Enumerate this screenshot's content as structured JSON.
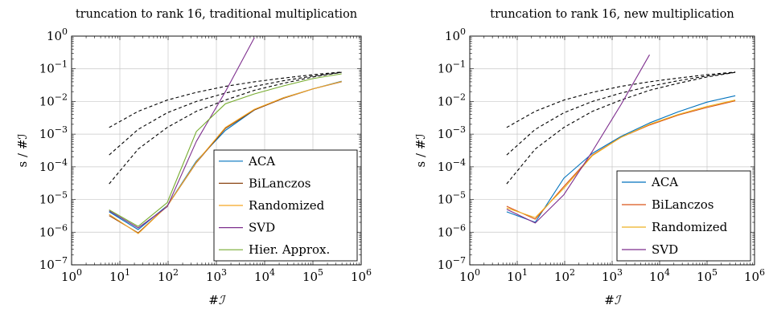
{
  "chart_data": [
    {
      "type": "line",
      "title": "truncation to rank 16, traditional multiplication",
      "xlabel": "#ℐ",
      "ylabel": "s / #ℐ",
      "xscale": "log",
      "yscale": "log",
      "xlim": [
        1,
        1000000
      ],
      "ylim": [
        1e-07,
        1
      ],
      "grid": true,
      "legend": "bottom-right",
      "x_tick_labels": [
        {
          "b": "10",
          "e": "0"
        },
        {
          "b": "10",
          "e": "1"
        },
        {
          "b": "10",
          "e": "2"
        },
        {
          "b": "10",
          "e": "3"
        },
        {
          "b": "10",
          "e": "4"
        },
        {
          "b": "10",
          "e": "5"
        },
        {
          "b": "10",
          "e": "6"
        }
      ],
      "y_tick_labels": [
        {
          "b": "10",
          "e": "−7"
        },
        {
          "b": "10",
          "e": "−6"
        },
        {
          "b": "10",
          "e": "−5"
        },
        {
          "b": "10",
          "e": "−4"
        },
        {
          "b": "10",
          "e": "−3"
        },
        {
          "b": "10",
          "e": "−2"
        },
        {
          "b": "10",
          "e": "−1"
        },
        {
          "b": "10",
          "e": "0"
        }
      ],
      "series": [
        {
          "name": "ACA",
          "color": "#0072bd",
          "x": [
            6,
            24,
            96,
            384,
            1536,
            6144,
            24576,
            98304,
            393216
          ],
          "y": [
            4.2e-06,
            1.2e-06,
            6.5e-06,
            0.00015,
            0.0013,
            0.0055,
            0.013,
            0.024,
            0.042
          ]
        },
        {
          "name": "BiLanczos",
          "color": "#8b4513",
          "x": [
            6,
            24,
            96,
            384,
            1536,
            6144,
            24576,
            98304,
            393216
          ],
          "y": [
            3.2e-06,
            9.5e-07,
            6.3e-06,
            0.000135,
            0.0015,
            0.0055,
            0.0125,
            0.024,
            0.04
          ]
        },
        {
          "name": "Randomized",
          "color": "#f5a623",
          "x": [
            6,
            24,
            96,
            384,
            1536,
            6144,
            24576,
            98304,
            393216
          ],
          "y": [
            3.5e-06,
            9e-07,
            6.4e-06,
            0.00014,
            0.0016,
            0.0058,
            0.013,
            0.024,
            0.041
          ]
        },
        {
          "name": "SVD",
          "color": "#7e2f8e",
          "x": [
            6,
            24,
            96,
            384,
            1536,
            6144
          ],
          "y": [
            4.5e-06,
            1.35e-06,
            6e-06,
            0.0006,
            0.02,
            0.9
          ]
        },
        {
          "name": "Hier. Approx.",
          "color": "#77ac30",
          "x": [
            6,
            24,
            96,
            384,
            1536,
            6144,
            24576,
            98304,
            393216
          ],
          "y": [
            4.8e-06,
            1.5e-06,
            8e-06,
            0.0012,
            0.0085,
            0.017,
            0.03,
            0.05,
            0.07
          ]
        },
        {
          "color": "#000000",
          "dashed": true,
          "x": [
            6,
            24,
            96,
            384,
            1536,
            6144,
            24576,
            98304,
            393216
          ],
          "y": [
            0.0016,
            0.005,
            0.011,
            0.019,
            0.029,
            0.04,
            0.052,
            0.066,
            0.08
          ]
        },
        {
          "color": "#000000",
          "dashed": true,
          "x": [
            6,
            24,
            96,
            384,
            1536,
            6144,
            24576,
            98304,
            393216
          ],
          "y": [
            0.00023,
            0.0014,
            0.0045,
            0.01,
            0.018,
            0.029,
            0.043,
            0.06,
            0.078
          ]
        },
        {
          "color": "#000000",
          "dashed": true,
          "x": [
            6,
            24,
            96,
            384,
            1536,
            6144,
            24576,
            98304,
            393216
          ],
          "y": [
            3e-05,
            0.00035,
            0.0016,
            0.005,
            0.011,
            0.022,
            0.036,
            0.056,
            0.078
          ]
        }
      ]
    },
    {
      "type": "line",
      "title": "truncation to rank 16, new multiplication",
      "xlabel": "#ℐ",
      "ylabel": "s / #ℐ",
      "xscale": "log",
      "yscale": "log",
      "xlim": [
        1,
        1000000
      ],
      "ylim": [
        1e-07,
        1
      ],
      "grid": true,
      "legend": "bottom-right",
      "x_tick_labels": [
        {
          "b": "10",
          "e": "0"
        },
        {
          "b": "10",
          "e": "1"
        },
        {
          "b": "10",
          "e": "2"
        },
        {
          "b": "10",
          "e": "3"
        },
        {
          "b": "10",
          "e": "4"
        },
        {
          "b": "10",
          "e": "5"
        },
        {
          "b": "10",
          "e": "6"
        }
      ],
      "y_tick_labels": [
        {
          "b": "10",
          "e": "−7"
        },
        {
          "b": "10",
          "e": "−6"
        },
        {
          "b": "10",
          "e": "−5"
        },
        {
          "b": "10",
          "e": "−4"
        },
        {
          "b": "10",
          "e": "−3"
        },
        {
          "b": "10",
          "e": "−2"
        },
        {
          "b": "10",
          "e": "−1"
        },
        {
          "b": "10",
          "e": "0"
        }
      ],
      "series": [
        {
          "name": "ACA",
          "color": "#0072bd",
          "x": [
            6,
            24,
            96,
            384,
            1536,
            6144,
            24576,
            98304,
            393216
          ],
          "y": [
            4.2e-06,
            2e-06,
            4.5e-05,
            0.00026,
            0.00085,
            0.0022,
            0.0048,
            0.0095,
            0.015
          ]
        },
        {
          "name": "BiLanczos",
          "color": "#d95319",
          "x": [
            6,
            24,
            96,
            384,
            1536,
            6144,
            24576,
            98304,
            393216
          ],
          "y": [
            6.2e-06,
            2.5e-06,
            2.5e-05,
            0.00023,
            0.0008,
            0.0019,
            0.0038,
            0.0065,
            0.0105
          ]
        },
        {
          "name": "Randomized",
          "color": "#edb120",
          "x": [
            6,
            24,
            96,
            384,
            1536,
            6144,
            24576,
            98304,
            393216
          ],
          "y": [
            5.5e-06,
            2.8e-06,
            2.2e-05,
            0.00022,
            0.0008,
            0.002,
            0.004,
            0.007,
            0.011
          ]
        },
        {
          "name": "SVD",
          "color": "#7e2f8e",
          "x": [
            6,
            24,
            96,
            384,
            1536,
            6144
          ],
          "y": [
            5e-06,
            1.9e-06,
            1.4e-05,
            0.0003,
            0.008,
            0.27
          ]
        },
        {
          "color": "#000000",
          "dashed": true,
          "x": [
            6,
            24,
            96,
            384,
            1536,
            6144,
            24576,
            98304,
            393216
          ],
          "y": [
            0.0016,
            0.005,
            0.011,
            0.019,
            0.029,
            0.04,
            0.052,
            0.066,
            0.08
          ]
        },
        {
          "color": "#000000",
          "dashed": true,
          "x": [
            6,
            24,
            96,
            384,
            1536,
            6144,
            24576,
            98304,
            393216
          ],
          "y": [
            0.00023,
            0.0014,
            0.0045,
            0.01,
            0.018,
            0.029,
            0.043,
            0.06,
            0.078
          ]
        },
        {
          "color": "#000000",
          "dashed": true,
          "x": [
            6,
            24,
            96,
            384,
            1536,
            6144,
            24576,
            98304,
            393216
          ],
          "y": [
            3e-05,
            0.00035,
            0.0016,
            0.005,
            0.011,
            0.022,
            0.036,
            0.056,
            0.078
          ]
        }
      ]
    }
  ]
}
